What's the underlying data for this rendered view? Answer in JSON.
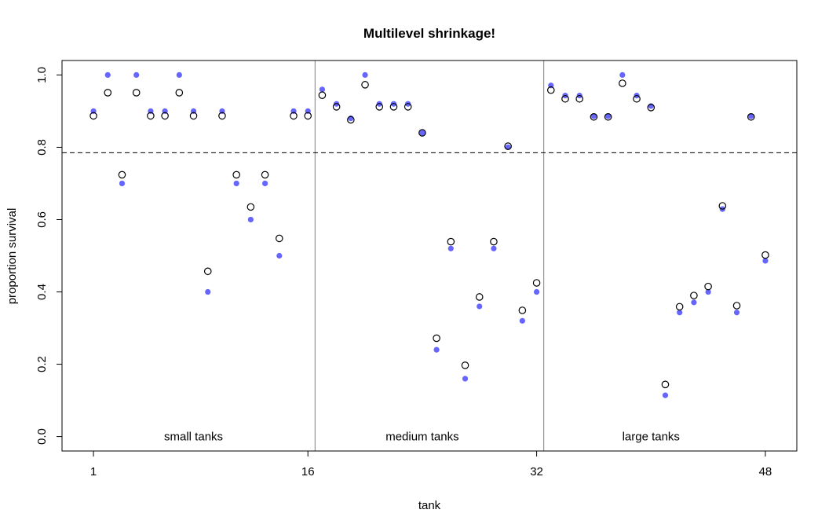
{
  "chart_data": {
    "type": "scatter",
    "title": "Multilevel shrinkage!",
    "xlabel": "tank",
    "ylabel": "proportion survival",
    "xlim": [
      -1.2,
      50.2
    ],
    "ylim": [
      -0.04,
      1.04
    ],
    "x_ticks": [
      1,
      16,
      32,
      48
    ],
    "y_ticks": [
      0.0,
      0.2,
      0.4,
      0.6,
      0.8,
      1.0
    ],
    "y_tick_labels": [
      "0.0",
      "0.2",
      "0.4",
      "0.6",
      "0.8",
      "1.0"
    ],
    "grid": false,
    "reference_line": {
      "y": 0.785,
      "style": "dashed"
    },
    "dividers": [
      16.5,
      32.5
    ],
    "group_labels": [
      {
        "text": "small tanks",
        "x": 8,
        "y": 0.0
      },
      {
        "text": "medium tanks",
        "x": 24,
        "y": 0.0
      },
      {
        "text": "large tanks",
        "x": 40,
        "y": 0.0
      }
    ],
    "series": [
      {
        "marker": "filled-circle",
        "color": "#6666ff",
        "x": [
          1,
          2,
          3,
          4,
          5,
          6,
          7,
          8,
          9,
          10,
          11,
          12,
          13,
          14,
          15,
          16,
          17,
          18,
          19,
          20,
          21,
          22,
          23,
          24,
          25,
          26,
          27,
          28,
          29,
          30,
          31,
          32,
          33,
          34,
          35,
          36,
          37,
          38,
          39,
          40,
          41,
          42,
          43,
          44,
          45,
          46,
          47,
          48
        ],
        "values": [
          0.9,
          1.0,
          0.7,
          1.0,
          0.9,
          0.9,
          1.0,
          0.9,
          0.4,
          0.9,
          0.7,
          0.6,
          0.7,
          0.5,
          0.9,
          0.9,
          0.96,
          0.92,
          0.88,
          1.0,
          0.92,
          0.92,
          0.92,
          0.84,
          0.24,
          0.52,
          0.16,
          0.36,
          0.52,
          0.8,
          0.32,
          0.4,
          0.971,
          0.943,
          0.943,
          0.886,
          0.886,
          1.0,
          0.943,
          0.914,
          0.114,
          0.343,
          0.371,
          0.4,
          0.629,
          0.343,
          0.886,
          0.486
        ]
      },
      {
        "marker": "open-circle",
        "color": "#000000",
        "x": [
          1,
          2,
          3,
          4,
          5,
          6,
          7,
          8,
          9,
          10,
          11,
          12,
          13,
          14,
          15,
          16,
          17,
          18,
          19,
          20,
          21,
          22,
          23,
          24,
          25,
          26,
          27,
          28,
          29,
          30,
          31,
          32,
          33,
          34,
          35,
          36,
          37,
          38,
          39,
          40,
          41,
          42,
          43,
          44,
          45,
          46,
          47,
          48
        ],
        "values": [
          0.887,
          0.951,
          0.724,
          0.951,
          0.887,
          0.887,
          0.951,
          0.887,
          0.457,
          0.887,
          0.724,
          0.635,
          0.724,
          0.548,
          0.887,
          0.887,
          0.944,
          0.912,
          0.876,
          0.973,
          0.912,
          0.912,
          0.912,
          0.84,
          0.272,
          0.539,
          0.197,
          0.386,
          0.539,
          0.803,
          0.349,
          0.425,
          0.958,
          0.934,
          0.934,
          0.884,
          0.884,
          0.977,
          0.934,
          0.91,
          0.144,
          0.359,
          0.39,
          0.415,
          0.638,
          0.362,
          0.884,
          0.502
        ]
      }
    ]
  }
}
